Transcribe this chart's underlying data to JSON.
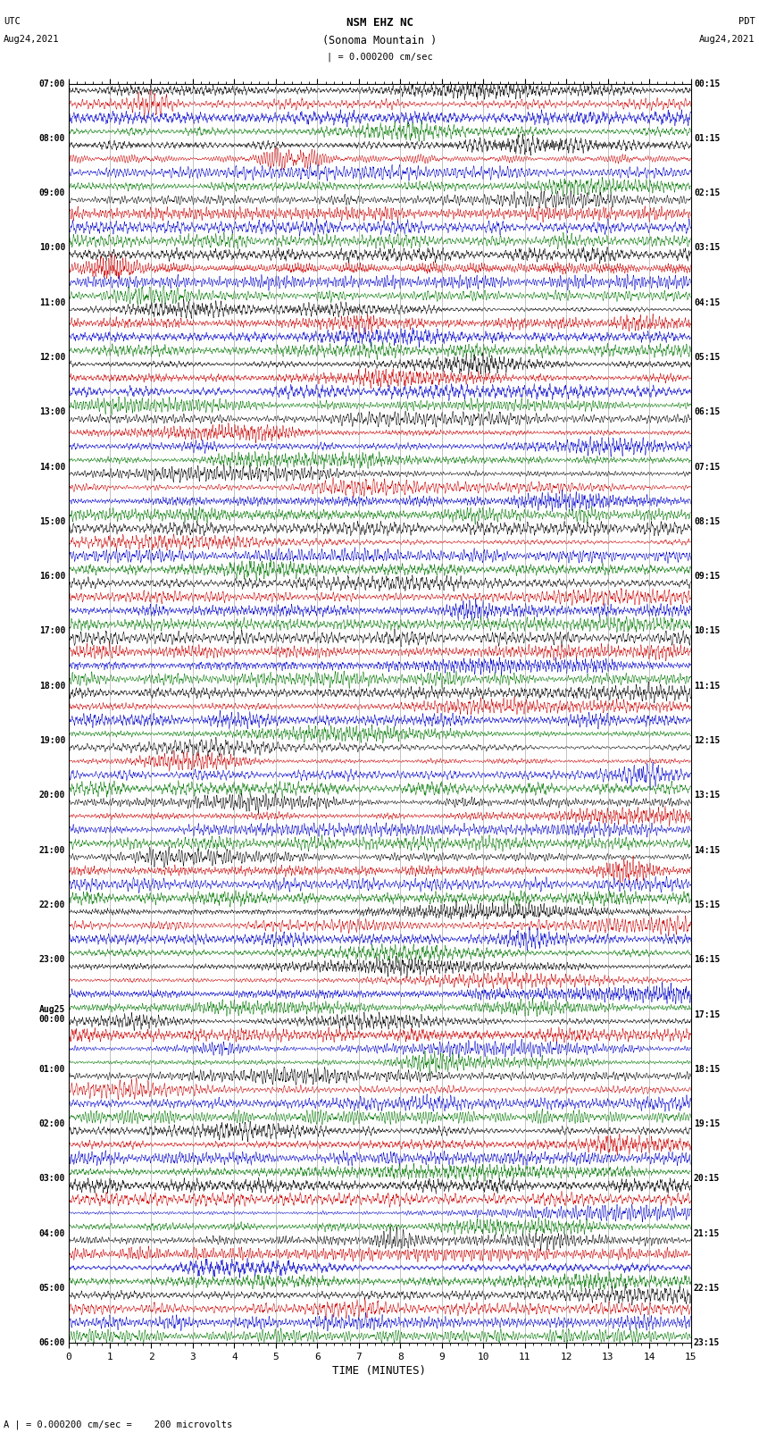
{
  "title_line1": "NSM EHZ NC",
  "title_line2": "(Sonoma Mountain )",
  "title_line3": "| = 0.000200 cm/sec",
  "left_header_line1": "UTC",
  "left_header_line2": "Aug24,2021",
  "right_header_line1": "PDT",
  "right_header_line2": "Aug24,2021",
  "xlabel": "TIME (MINUTES)",
  "bottom_note": "A | = 0.000200 cm/sec =    200 microvolts",
  "xlim": [
    0,
    15
  ],
  "xticks": [
    0,
    1,
    2,
    3,
    4,
    5,
    6,
    7,
    8,
    9,
    10,
    11,
    12,
    13,
    14,
    15
  ],
  "background_color": "#ffffff",
  "trace_colors": [
    "#000000",
    "#cc0000",
    "#0000cc",
    "#007700"
  ],
  "left_times": [
    "07:00",
    "",
    "",
    "",
    "08:00",
    "",
    "",
    "",
    "09:00",
    "",
    "",
    "",
    "10:00",
    "",
    "",
    "",
    "11:00",
    "",
    "",
    "",
    "12:00",
    "",
    "",
    "",
    "13:00",
    "",
    "",
    "",
    "14:00",
    "",
    "",
    "",
    "15:00",
    "",
    "",
    "",
    "16:00",
    "",
    "",
    "",
    "17:00",
    "",
    "",
    "",
    "18:00",
    "",
    "",
    "",
    "19:00",
    "",
    "",
    "",
    "20:00",
    "",
    "",
    "",
    "21:00",
    "",
    "",
    "",
    "22:00",
    "",
    "",
    "",
    "23:00",
    "",
    "",
    "",
    "Aug25\n00:00",
    "",
    "",
    "",
    "01:00",
    "",
    "",
    "",
    "02:00",
    "",
    "",
    "",
    "03:00",
    "",
    "",
    "",
    "04:00",
    "",
    "",
    "",
    "05:00",
    "",
    "",
    "",
    "06:00",
    "",
    "",
    ""
  ],
  "right_times": [
    "00:15",
    "",
    "",
    "",
    "01:15",
    "",
    "",
    "",
    "02:15",
    "",
    "",
    "",
    "03:15",
    "",
    "",
    "",
    "04:15",
    "",
    "",
    "",
    "05:15",
    "",
    "",
    "",
    "06:15",
    "",
    "",
    "",
    "07:15",
    "",
    "",
    "",
    "08:15",
    "",
    "",
    "",
    "09:15",
    "",
    "",
    "",
    "10:15",
    "",
    "",
    "",
    "11:15",
    "",
    "",
    "",
    "12:15",
    "",
    "",
    "",
    "13:15",
    "",
    "",
    "",
    "14:15",
    "",
    "",
    "",
    "15:15",
    "",
    "",
    "",
    "16:15",
    "",
    "",
    "",
    "17:15",
    "",
    "",
    "",
    "18:15",
    "",
    "",
    "",
    "19:15",
    "",
    "",
    "",
    "20:15",
    "",
    "",
    "",
    "21:15",
    "",
    "",
    "",
    "22:15",
    "",
    "",
    "",
    "23:15",
    "",
    "",
    ""
  ],
  "n_traces": 92,
  "n_colors": 4,
  "seed": 42,
  "vline_positions": [
    1,
    2,
    3,
    4,
    5,
    6,
    7,
    8,
    9,
    10,
    11,
    12,
    13,
    14
  ],
  "vline_color": "#888888",
  "vline_lw": 0.5
}
